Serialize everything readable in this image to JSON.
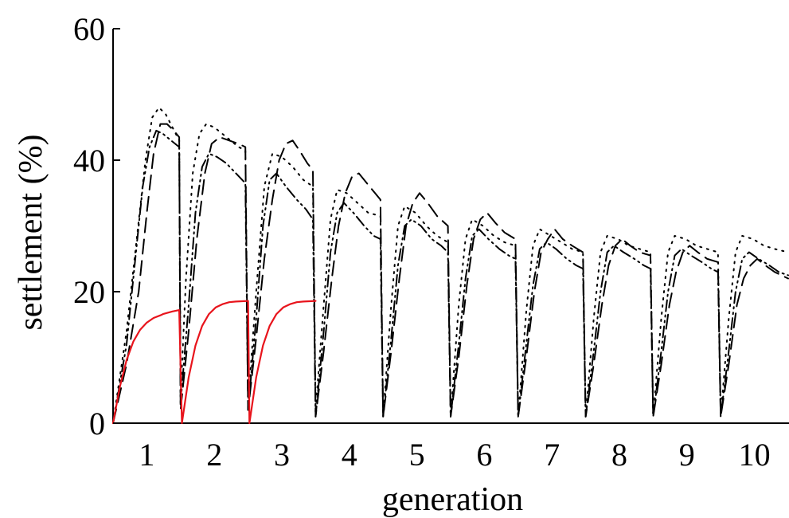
{
  "chart_data": {
    "type": "line",
    "xlabel": "generation",
    "ylabel": "settlement (%)",
    "xlim": [
      0,
      10
    ],
    "ylim": [
      0,
      60
    ],
    "x_tick_labels": [
      "1",
      "2",
      "3",
      "4",
      "5",
      "6",
      "7",
      "8",
      "9",
      "10"
    ],
    "y_tick_labels": [
      "0",
      "20",
      "40",
      "60"
    ],
    "grid": false,
    "legend": "none",
    "series": [
      {
        "style": "solid",
        "color": "#e8141c",
        "points": [
          [
            0,
            0
          ],
          [
            0.1,
            5.5
          ],
          [
            0.2,
            9.6
          ],
          [
            0.3,
            12.4
          ],
          [
            0.4,
            14.2
          ],
          [
            0.5,
            15.3
          ],
          [
            0.6,
            16.0
          ],
          [
            0.7,
            16.4
          ],
          [
            0.74,
            16.6
          ],
          [
            0.88,
            17.0
          ],
          [
            0.98,
            17.2
          ],
          [
            1.02,
            0
          ],
          [
            1.12,
            7.0
          ],
          [
            1.22,
            11.8
          ],
          [
            1.32,
            14.8
          ],
          [
            1.42,
            16.6
          ],
          [
            1.52,
            17.6
          ],
          [
            1.62,
            18.1
          ],
          [
            1.72,
            18.4
          ],
          [
            1.82,
            18.5
          ],
          [
            2.0,
            18.6
          ],
          [
            2.02,
            0
          ],
          [
            2.12,
            7.0
          ],
          [
            2.22,
            11.8
          ],
          [
            2.32,
            14.8
          ],
          [
            2.42,
            16.6
          ],
          [
            2.52,
            17.6
          ],
          [
            2.62,
            18.1
          ],
          [
            2.72,
            18.4
          ],
          [
            2.82,
            18.5
          ],
          [
            3.0,
            18.6
          ]
        ]
      },
      {
        "style": "dotted",
        "color": "#000000",
        "points": [
          [
            0,
            0
          ],
          [
            0.2,
            14
          ],
          [
            0.35,
            28
          ],
          [
            0.48,
            40
          ],
          [
            0.58,
            46.5
          ],
          [
            0.68,
            48
          ],
          [
            0.78,
            47
          ],
          [
            0.88,
            45
          ],
          [
            0.98,
            43
          ],
          [
            1.0,
            4
          ],
          [
            1.08,
            22
          ],
          [
            1.18,
            38
          ],
          [
            1.28,
            44
          ],
          [
            1.38,
            45.5
          ],
          [
            1.5,
            45
          ],
          [
            1.62,
            44
          ],
          [
            1.74,
            43
          ],
          [
            1.86,
            42
          ],
          [
            1.96,
            41.5
          ],
          [
            2.0,
            3
          ],
          [
            2.12,
            20
          ],
          [
            2.24,
            36
          ],
          [
            2.36,
            41
          ],
          [
            2.5,
            40.5
          ],
          [
            2.66,
            39
          ],
          [
            2.82,
            37
          ],
          [
            2.96,
            36
          ],
          [
            3.0,
            2
          ],
          [
            3.12,
            18
          ],
          [
            3.22,
            31
          ],
          [
            3.32,
            35.5
          ],
          [
            3.46,
            35
          ],
          [
            3.62,
            33.5
          ],
          [
            3.78,
            32
          ],
          [
            3.96,
            31.5
          ],
          [
            4.0,
            1
          ],
          [
            4.12,
            18
          ],
          [
            4.22,
            30
          ],
          [
            4.32,
            33
          ],
          [
            4.48,
            32
          ],
          [
            4.64,
            30
          ],
          [
            4.8,
            28.5
          ],
          [
            4.96,
            27.5
          ],
          [
            5.0,
            1
          ],
          [
            5.12,
            18
          ],
          [
            5.22,
            28
          ],
          [
            5.32,
            31
          ],
          [
            5.48,
            30
          ],
          [
            5.64,
            28.5
          ],
          [
            5.8,
            27.5
          ],
          [
            5.96,
            27
          ],
          [
            6.0,
            1
          ],
          [
            6.12,
            17
          ],
          [
            6.22,
            27
          ],
          [
            6.32,
            29.5
          ],
          [
            6.48,
            28.5
          ],
          [
            6.64,
            27.5
          ],
          [
            6.8,
            26.5
          ],
          [
            6.96,
            26
          ],
          [
            7.0,
            1
          ],
          [
            7.12,
            16
          ],
          [
            7.22,
            26
          ],
          [
            7.32,
            28.5
          ],
          [
            7.48,
            28
          ],
          [
            7.64,
            27
          ],
          [
            7.8,
            26.5
          ],
          [
            7.96,
            26
          ],
          [
            8.0,
            1
          ],
          [
            8.12,
            16
          ],
          [
            8.22,
            26
          ],
          [
            8.32,
            28.5
          ],
          [
            8.48,
            28
          ],
          [
            8.64,
            27
          ],
          [
            8.8,
            26.5
          ],
          [
            8.96,
            26
          ],
          [
            9.0,
            1
          ],
          [
            9.12,
            16
          ],
          [
            9.22,
            26
          ],
          [
            9.32,
            28.5
          ],
          [
            9.48,
            28
          ],
          [
            9.64,
            27
          ],
          [
            9.8,
            26.5
          ],
          [
            10.0,
            26
          ]
        ]
      },
      {
        "style": "dashed",
        "color": "#000000",
        "points": [
          [
            0,
            0
          ],
          [
            0.2,
            9
          ],
          [
            0.38,
            20
          ],
          [
            0.5,
            32
          ],
          [
            0.6,
            41
          ],
          [
            0.7,
            45.5
          ],
          [
            0.8,
            45.5
          ],
          [
            0.9,
            44.5
          ],
          [
            0.98,
            43.5
          ],
          [
            1.0,
            2
          ],
          [
            1.12,
            14
          ],
          [
            1.24,
            28
          ],
          [
            1.36,
            38
          ],
          [
            1.46,
            42.5
          ],
          [
            1.58,
            43.5
          ],
          [
            1.72,
            43
          ],
          [
            1.86,
            42.5
          ],
          [
            1.96,
            42
          ],
          [
            2.0,
            2
          ],
          [
            2.12,
            13
          ],
          [
            2.24,
            25
          ],
          [
            2.36,
            34
          ],
          [
            2.46,
            40
          ],
          [
            2.56,
            42.5
          ],
          [
            2.66,
            43
          ],
          [
            2.76,
            41.5
          ],
          [
            2.88,
            39.5
          ],
          [
            2.96,
            38.5
          ],
          [
            3.0,
            1
          ],
          [
            3.12,
            11
          ],
          [
            3.24,
            22
          ],
          [
            3.34,
            30
          ],
          [
            3.44,
            35
          ],
          [
            3.54,
            37.5
          ],
          [
            3.64,
            38
          ],
          [
            3.76,
            36.5
          ],
          [
            3.88,
            35
          ],
          [
            3.96,
            34
          ],
          [
            4.0,
            1
          ],
          [
            4.12,
            11
          ],
          [
            4.24,
            22
          ],
          [
            4.34,
            30
          ],
          [
            4.44,
            33.5
          ],
          [
            4.54,
            35
          ],
          [
            4.66,
            33.5
          ],
          [
            4.8,
            31.5
          ],
          [
            4.96,
            30
          ],
          [
            5.0,
            1
          ],
          [
            5.12,
            10
          ],
          [
            5.24,
            21
          ],
          [
            5.34,
            28
          ],
          [
            5.44,
            31
          ],
          [
            5.54,
            32
          ],
          [
            5.66,
            30.5
          ],
          [
            5.8,
            29
          ],
          [
            5.96,
            28
          ],
          [
            6.0,
            1
          ],
          [
            6.12,
            10
          ],
          [
            6.24,
            20
          ],
          [
            6.34,
            26
          ],
          [
            6.44,
            28
          ],
          [
            6.54,
            29.5
          ],
          [
            6.66,
            28
          ],
          [
            6.8,
            27
          ],
          [
            6.96,
            26
          ],
          [
            7.0,
            1
          ],
          [
            7.12,
            9
          ],
          [
            7.24,
            18
          ],
          [
            7.34,
            24
          ],
          [
            7.44,
            27
          ],
          [
            7.54,
            28
          ],
          [
            7.66,
            27
          ],
          [
            7.8,
            26
          ],
          [
            7.96,
            25.5
          ],
          [
            8.0,
            1
          ],
          [
            8.12,
            9
          ],
          [
            8.24,
            18
          ],
          [
            8.34,
            23
          ],
          [
            8.44,
            26
          ],
          [
            8.54,
            27
          ],
          [
            8.66,
            26
          ],
          [
            8.8,
            25
          ],
          [
            8.96,
            24.5
          ],
          [
            9.0,
            1
          ],
          [
            9.12,
            9
          ],
          [
            9.24,
            18
          ],
          [
            9.34,
            22
          ],
          [
            9.44,
            24
          ],
          [
            9.54,
            25
          ],
          [
            9.66,
            24
          ],
          [
            9.8,
            23
          ],
          [
            10.0,
            22
          ]
        ]
      },
      {
        "style": "dash-dot-dot",
        "color": "#000000",
        "points": [
          [
            0,
            0
          ],
          [
            0.2,
            12
          ],
          [
            0.32,
            24
          ],
          [
            0.44,
            36
          ],
          [
            0.54,
            42
          ],
          [
            0.64,
            44.5
          ],
          [
            0.74,
            44
          ],
          [
            0.86,
            43
          ],
          [
            0.98,
            42
          ],
          [
            1.0,
            3
          ],
          [
            1.12,
            18
          ],
          [
            1.22,
            32
          ],
          [
            1.32,
            39
          ],
          [
            1.42,
            41
          ],
          [
            1.54,
            40.5
          ],
          [
            1.68,
            39.5
          ],
          [
            1.82,
            38
          ],
          [
            1.96,
            36.5
          ],
          [
            2.0,
            2
          ],
          [
            2.12,
            16
          ],
          [
            2.22,
            30
          ],
          [
            2.32,
            37
          ],
          [
            2.42,
            38
          ],
          [
            2.56,
            36
          ],
          [
            2.72,
            34
          ],
          [
            2.86,
            32.5
          ],
          [
            2.96,
            31
          ],
          [
            3.0,
            1
          ],
          [
            3.12,
            14
          ],
          [
            3.22,
            26
          ],
          [
            3.32,
            32
          ],
          [
            3.42,
            33.5
          ],
          [
            3.56,
            32
          ],
          [
            3.72,
            30
          ],
          [
            3.86,
            28.5
          ],
          [
            3.96,
            28
          ],
          [
            4.0,
            1
          ],
          [
            4.12,
            13
          ],
          [
            4.22,
            24
          ],
          [
            4.32,
            30
          ],
          [
            4.42,
            31
          ],
          [
            4.56,
            30
          ],
          [
            4.72,
            28
          ],
          [
            4.86,
            27
          ],
          [
            4.96,
            26
          ],
          [
            5.0,
            1
          ],
          [
            5.12,
            12
          ],
          [
            5.22,
            22
          ],
          [
            5.32,
            28.5
          ],
          [
            5.42,
            29.5
          ],
          [
            5.56,
            28
          ],
          [
            5.72,
            26.5
          ],
          [
            5.86,
            25.5
          ],
          [
            5.96,
            25
          ],
          [
            6.0,
            1
          ],
          [
            6.12,
            12
          ],
          [
            6.22,
            21
          ],
          [
            6.32,
            26.5
          ],
          [
            6.42,
            27.5
          ],
          [
            6.56,
            26.5
          ],
          [
            6.72,
            25
          ],
          [
            6.86,
            24
          ],
          [
            6.96,
            23.5
          ],
          [
            7.0,
            1
          ],
          [
            7.12,
            11
          ],
          [
            7.22,
            20
          ],
          [
            7.32,
            26
          ],
          [
            7.42,
            27
          ],
          [
            7.56,
            26
          ],
          [
            7.72,
            25
          ],
          [
            7.86,
            24
          ],
          [
            7.96,
            23.5
          ],
          [
            8.0,
            1
          ],
          [
            8.12,
            11
          ],
          [
            8.22,
            20
          ],
          [
            8.32,
            25.5
          ],
          [
            8.42,
            26.5
          ],
          [
            8.56,
            25.5
          ],
          [
            8.72,
            24.5
          ],
          [
            8.86,
            23.5
          ],
          [
            8.96,
            23
          ],
          [
            9.0,
            1
          ],
          [
            9.12,
            11
          ],
          [
            9.22,
            20
          ],
          [
            9.32,
            25
          ],
          [
            9.42,
            26
          ],
          [
            9.56,
            25
          ],
          [
            9.72,
            24
          ],
          [
            9.86,
            23
          ],
          [
            10.0,
            22.5
          ]
        ]
      }
    ]
  }
}
